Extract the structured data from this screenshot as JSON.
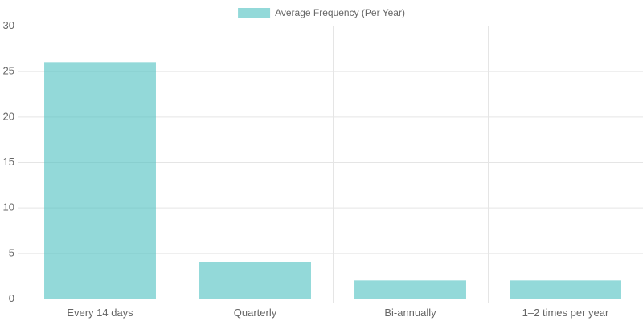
{
  "colors": {
    "bar_fill": "#4bc0c0",
    "bar_opacity": 0.6,
    "grid": "#e5e5e5",
    "axis_text": "#666666"
  },
  "chart_data": {
    "type": "bar",
    "categories": [
      "Every 14 days",
      "Quarterly",
      "Bi-annually",
      "1–2 times per year"
    ],
    "series": [
      {
        "name": "Average Frequency (Per Year)",
        "values": [
          26,
          4,
          2,
          2
        ]
      }
    ],
    "ylim": [
      0,
      30
    ],
    "yticks": [
      0,
      5,
      10,
      15,
      20,
      25,
      30
    ],
    "title": "",
    "xlabel": "",
    "ylabel": "",
    "grid": true,
    "legend_position": "top-center"
  }
}
